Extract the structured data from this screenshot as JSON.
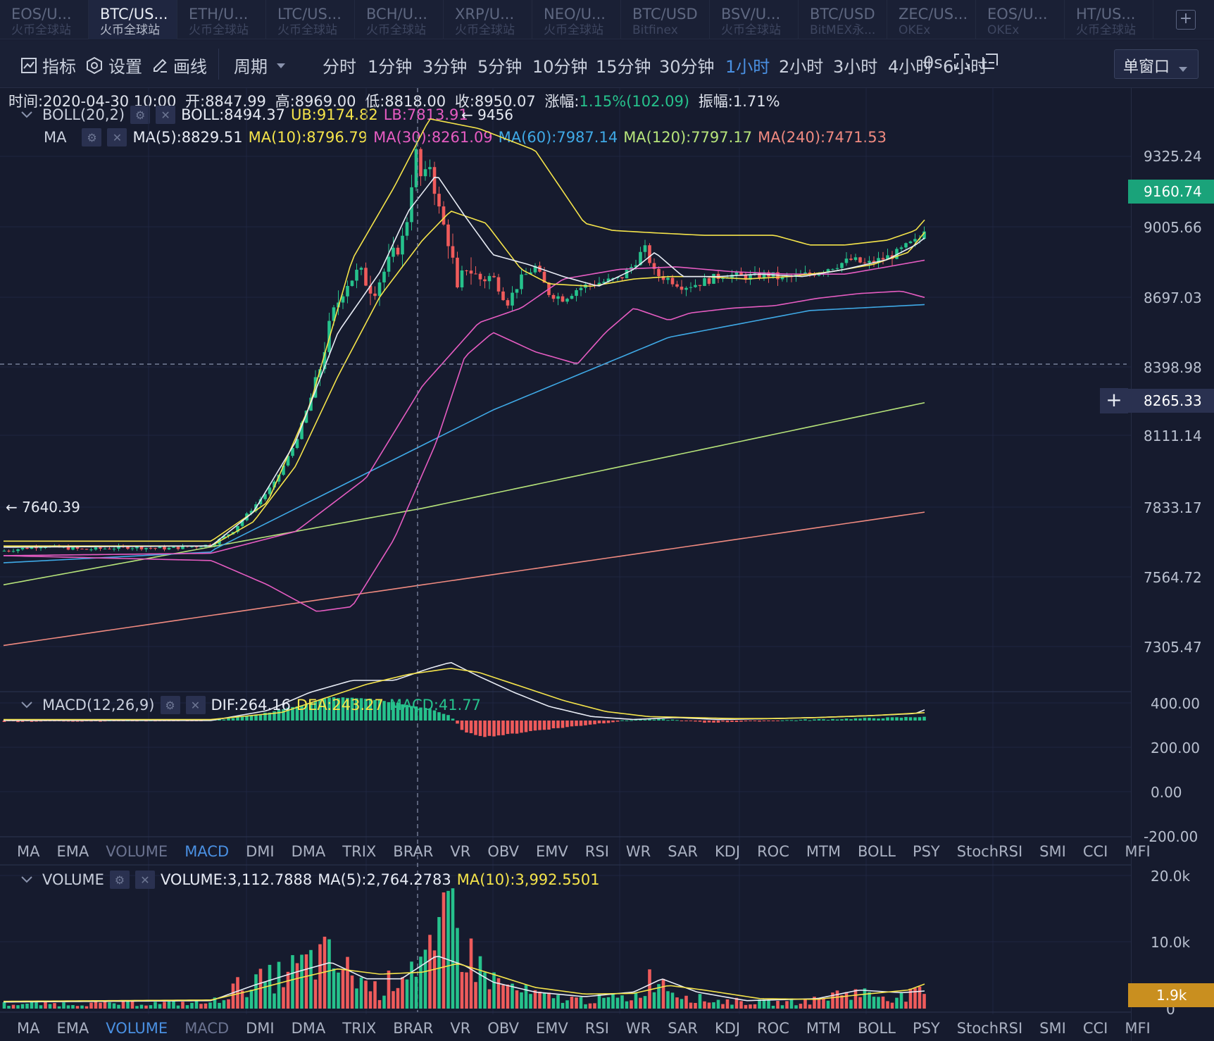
{
  "tabs": [
    {
      "pair": "EOS/U...",
      "exchange": "火币全球站"
    },
    {
      "pair": "BTC/US...",
      "exchange": "火币全球站"
    },
    {
      "pair": "ETH/U...",
      "exchange": "火币全球站"
    },
    {
      "pair": "LTC/US...",
      "exchange": "火币全球站"
    },
    {
      "pair": "BCH/U...",
      "exchange": "火币全球站"
    },
    {
      "pair": "XRP/U...",
      "exchange": "火币全球站"
    },
    {
      "pair": "NEO/U...",
      "exchange": "火币全球站"
    },
    {
      "pair": "BTC/USD",
      "exchange": "Bitfinex"
    },
    {
      "pair": "BSV/U...",
      "exchange": "火币全球站"
    },
    {
      "pair": "BTC/USD",
      "exchange": "BitMEX永..."
    },
    {
      "pair": "ZEC/US...",
      "exchange": "OKEx"
    },
    {
      "pair": "EOS/U...",
      "exchange": "OKEx"
    },
    {
      "pair": "HT/US...",
      "exchange": "火币全球站"
    }
  ],
  "active_tab": 1,
  "toolbar": {
    "indicator": "指标",
    "settings": "设置",
    "draw": "画线",
    "period": "周期",
    "periods": [
      "分时",
      "1分钟",
      "3分钟",
      "5分钟",
      "10分钟",
      "15分钟",
      "30分钟",
      "1小时",
      "2小时",
      "3小时",
      "4小时",
      "6小时"
    ],
    "active_period": "1小时",
    "countdown": "0s",
    "window_mode": "单窗口"
  },
  "ohlc": {
    "time": "时间:2020-04-30 10:00",
    "open": "开:8847.99",
    "high": "高:8969.00",
    "low": "低:8818.00",
    "close": "收:8950.07",
    "change_label": "涨幅:",
    "change": "1.15%(102.09)",
    "amplitude": "振幅:1.71%"
  },
  "boll": {
    "name": "BOLL(20,2)",
    "mid": "BOLL:8494.37",
    "ub": "UB:9174.82",
    "lb": "LB:7813.91"
  },
  "ma": {
    "name": "MA",
    "ma5": "MA(5):8829.51",
    "ma10": "MA(10):8796.79",
    "ma30": "MA(30):8261.09",
    "ma60": "MA(60):7987.14",
    "ma120": "MA(120):7797.17",
    "ma240": "MA(240):7471.53"
  },
  "price_axis": [
    "9325.24",
    "9005.66",
    "8697.03",
    "8398.98",
    "8111.14",
    "7833.17",
    "7564.72",
    "7305.47"
  ],
  "last_price": "9160.74",
  "crosshair_price": "8265.33",
  "high_marker": "9456",
  "low_marker": "7640.39",
  "macd": {
    "name": "MACD(12,26,9)",
    "dif": "DIF:264.16",
    "dea": "DEA:243.27",
    "macd": "MACD:41.77"
  },
  "macd_axis": [
    "400.00",
    "200.00",
    "0.00",
    "-200.00"
  ],
  "volume": {
    "name": "VOLUME",
    "value": "VOLUME:3,112.7888",
    "ma5": "MA(5):2,764.2783",
    "ma10": "MA(10):3,992.5501"
  },
  "volume_axis": [
    "20.0k",
    "10.0k",
    "0"
  ],
  "volume_tag": "1.9k",
  "indicators": [
    "MA",
    "EMA",
    "VOLUME",
    "MACD",
    "DMI",
    "DMA",
    "TRIX",
    "BRAR",
    "VR",
    "OBV",
    "EMV",
    "RSI",
    "WR",
    "SAR",
    "KDJ",
    "ROC",
    "MTM",
    "BOLL",
    "PSY",
    "StochRSI",
    "SMI",
    "CCI",
    "MFI"
  ],
  "colors": {
    "bg": "#161b2e",
    "up": "#26c28c",
    "down": "#ef5b5b",
    "accent": "#4a90e2",
    "ma5": "#e8ecf5",
    "ma10": "#f5e44a",
    "ma30": "#e65cc2",
    "ma60": "#3fa9e6",
    "ma120": "#b6e37a",
    "ma240": "#f08a80",
    "price_tag": "#1aa37a",
    "volume_tag": "#c98f1f"
  }
}
